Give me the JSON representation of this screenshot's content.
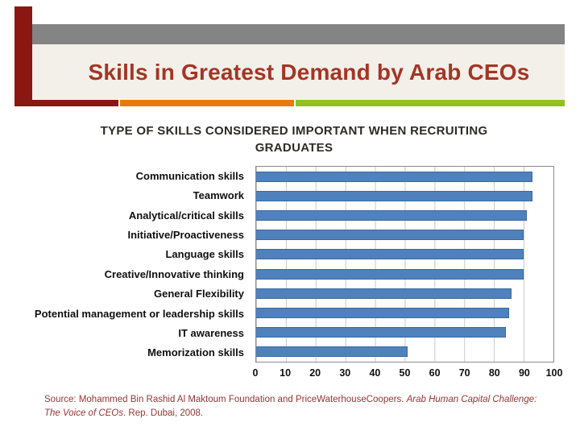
{
  "slide": {
    "title": "Skills in Greatest Demand by Arab CEOs",
    "source": {
      "prefix": "Source: Mohammed Bin Rashid Al Maktoum Foundation and PriceWaterhouseCoopers. ",
      "italic": "Arab Human Capital Challenge: The Voice of CEOs",
      "suffix": ". Rep. Dubai, 2008."
    }
  },
  "chart_data": {
    "type": "bar",
    "orientation": "horizontal",
    "title": "TYPE OF SKILLS CONSIDERED IMPORTANT WHEN RECRUITING GRADUATES",
    "title_lines": [
      "TYPE OF SKILLS CONSIDERED IMPORTANT WHEN RECRUITING",
      "GRADUATES"
    ],
    "categories": [
      "Communication skills",
      "Teamwork",
      "Analytical/critical skills",
      "Initiative/Proactiveness",
      "Language skills",
      "Creative/Innovative thinking",
      "General Flexibility",
      "Potential management or leadership skills",
      "IT awareness",
      "Memorization skills"
    ],
    "values": [
      93,
      93,
      91,
      90,
      90,
      90,
      86,
      85,
      84,
      51
    ],
    "xlim": [
      0,
      100
    ],
    "xticks": [
      0,
      10,
      20,
      30,
      40,
      50,
      60,
      70,
      80,
      90,
      100
    ],
    "xlabel": "",
    "ylabel": "",
    "grid": true,
    "legend": false,
    "bar_color": "#4f81bd"
  },
  "theme": {
    "accent_maroon": "#8a1712",
    "accent_orange": "#e97909",
    "accent_green": "#93c01f",
    "gray_bar": "#848484",
    "title_band_bg": "#f3f0e9",
    "slide_title_color": "#a43525",
    "source_color": "#943634"
  }
}
